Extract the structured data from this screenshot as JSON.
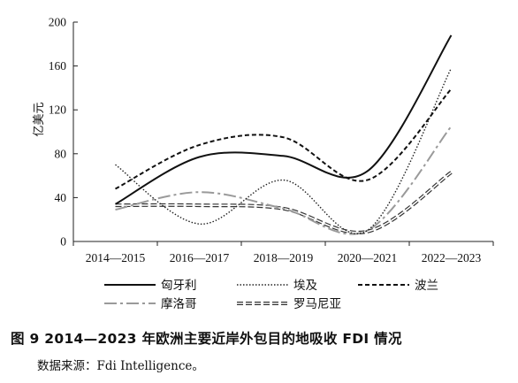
{
  "caption": "图 9   2014—2023 年欧洲主要近岸外包目的地吸收 FDI 情况",
  "source": "数据来源：Fdi Intelligence。",
  "chart_data": {
    "type": "line",
    "title": "",
    "xlabel": "",
    "ylabel": "亿美元",
    "ylim": [
      0,
      200
    ],
    "yticks": [
      0,
      40,
      80,
      120,
      160,
      200
    ],
    "grid": false,
    "legend_position": "bottom",
    "categories": [
      "2014—2015",
      "2016—2017",
      "2018—2019",
      "2020—2021",
      "2022—2023"
    ],
    "series": [
      {
        "name": "匈牙利",
        "style": "solid",
        "color": "#111111",
        "values": [
          34,
          77,
          78,
          64,
          188
        ]
      },
      {
        "name": "埃及",
        "style": "dotted",
        "color": "#222222",
        "values": [
          70,
          16,
          56,
          10,
          158
        ]
      },
      {
        "name": "波兰",
        "style": "dashed",
        "color": "#111111",
        "values": [
          48,
          88,
          95,
          56,
          139
        ]
      },
      {
        "name": "摩洛哥",
        "style": "dashdot",
        "color": "#9a9a9a",
        "values": [
          29,
          45,
          30,
          10,
          105
        ]
      },
      {
        "name": "罗马尼亚",
        "style": "double",
        "color": "#333333",
        "values": [
          33,
          33,
          30,
          9,
          63
        ]
      }
    ]
  }
}
